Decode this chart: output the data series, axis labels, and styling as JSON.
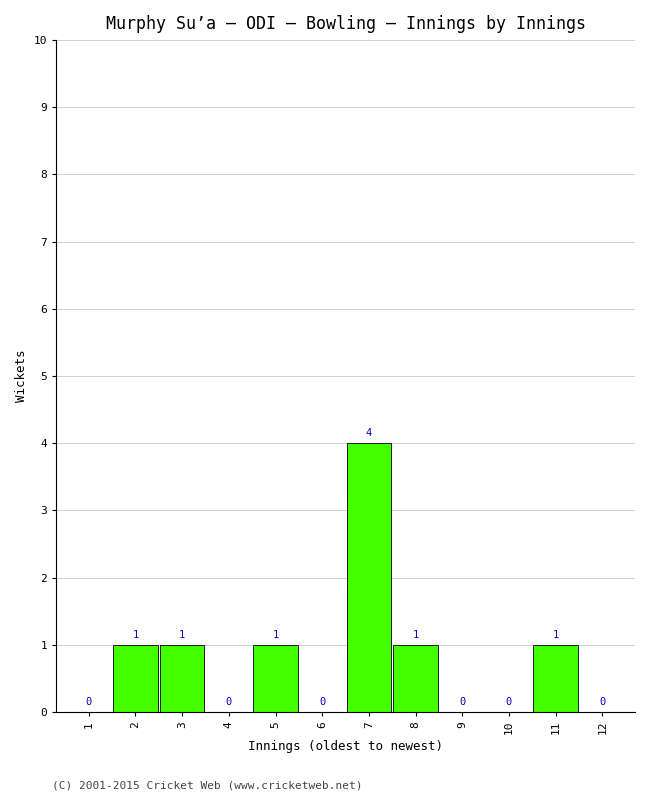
{
  "title": "Murphy Suʼa – ODI – Bowling – Innings by Innings",
  "xlabel": "Innings (oldest to newest)",
  "ylabel": "Wickets",
  "x_labels": [
    "1",
    "2",
    "3",
    "4",
    "5",
    "6",
    "7",
    "8",
    "9",
    "10",
    "11",
    "12"
  ],
  "values": [
    0,
    1,
    1,
    0,
    1,
    0,
    4,
    1,
    0,
    0,
    1,
    0
  ],
  "bar_color": "#44ff00",
  "bar_edge_color": "#000000",
  "ylim": [
    0,
    10
  ],
  "yticks": [
    0,
    1,
    2,
    3,
    4,
    5,
    6,
    7,
    8,
    9,
    10
  ],
  "label_color": "#0000cc",
  "label_fontsize": 7.5,
  "title_fontsize": 12,
  "axis_label_fontsize": 9,
  "tick_fontsize": 8,
  "background_color": "#ffffff",
  "grid_color": "#d0d0d0",
  "footer": "(C) 2001-2015 Cricket Web (www.cricketweb.net)",
  "footer_fontsize": 8,
  "footer_color": "#444444"
}
